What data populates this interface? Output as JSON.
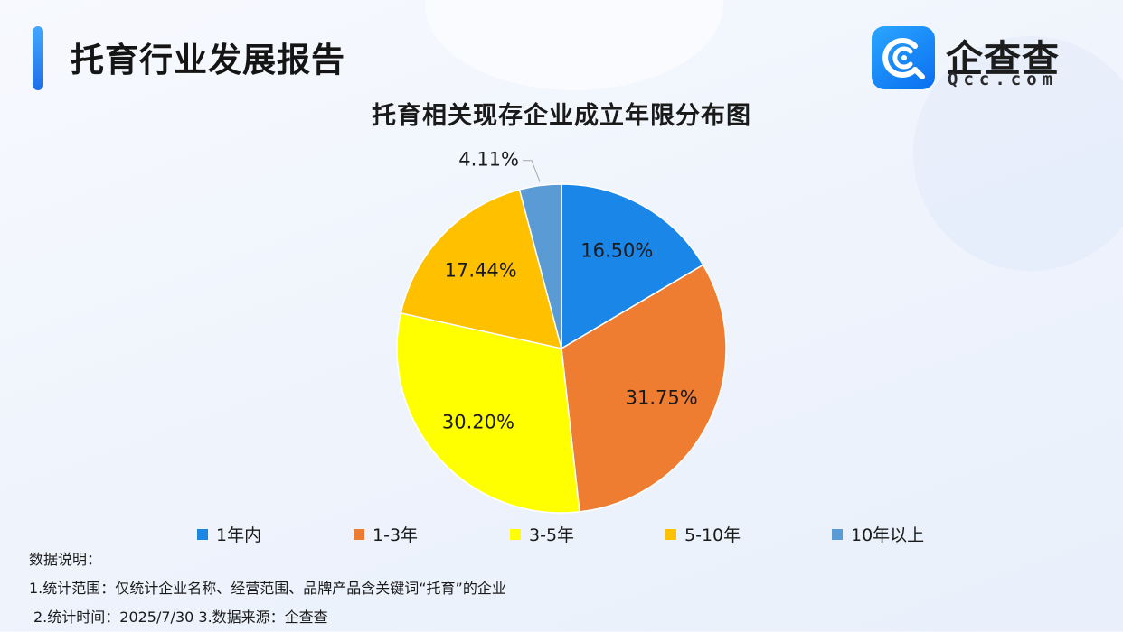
{
  "header": {
    "title": "托育行业发展报告"
  },
  "logo": {
    "name": "企查查",
    "subtitle": "Qcc.com",
    "accent_color": "#1a86f2"
  },
  "chart_data": {
    "type": "pie",
    "title": "托育相关现存企业成立年限分布图",
    "categories": [
      "1年内",
      "1-3年",
      "3-5年",
      "5-10年",
      "10年以上"
    ],
    "values": [
      16.5,
      31.75,
      30.2,
      17.44,
      4.11
    ],
    "labels": [
      "16.50%",
      "31.75%",
      "30.20%",
      "17.44%",
      "4.11%"
    ],
    "colors": [
      "#1a86e8",
      "#ee7d32",
      "#ffff00",
      "#ffc000",
      "#5b9bd5"
    ],
    "start_angle_deg": 0,
    "direction": "clockwise",
    "legend_position": "bottom"
  },
  "notes": {
    "heading": "数据说明：",
    "line1": "1.统计范围：仅统计企业名称、经营范围、品牌产品含关键词“托育”的企业",
    "line2": "2.统计时间：2025/7/30  3.数据来源：企查查"
  }
}
